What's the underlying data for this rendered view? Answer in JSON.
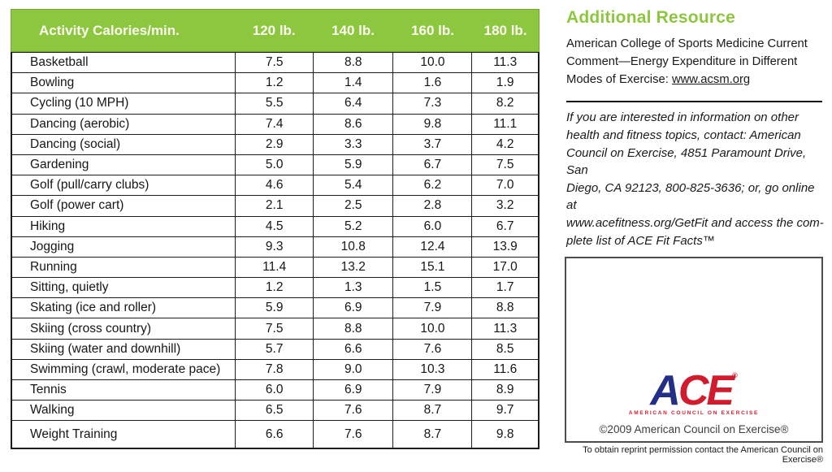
{
  "table": {
    "header": {
      "activity": "Activity Calories/min.",
      "weights": [
        "120 lb.",
        "140 lb.",
        "160 lb.",
        "180 lb."
      ]
    },
    "rows": [
      {
        "activity": "Basketball",
        "values": [
          "7.5",
          "8.8",
          "10.0",
          "11.3"
        ]
      },
      {
        "activity": "Bowling",
        "values": [
          "1.2",
          "1.4",
          "1.6",
          "1.9"
        ]
      },
      {
        "activity": "Cycling (10 MPH)",
        "values": [
          "5.5",
          "6.4",
          "7.3",
          "8.2"
        ]
      },
      {
        "activity": "Dancing (aerobic)",
        "values": [
          "7.4",
          "8.6",
          "9.8",
          "11.1"
        ]
      },
      {
        "activity": "Dancing (social)",
        "values": [
          "2.9",
          "3.3",
          "3.7",
          "4.2"
        ]
      },
      {
        "activity": "Gardening",
        "values": [
          "5.0",
          "5.9",
          "6.7",
          "7.5"
        ]
      },
      {
        "activity": "Golf (pull/carry clubs)",
        "values": [
          "4.6",
          "5.4",
          "6.2",
          "7.0"
        ]
      },
      {
        "activity": "Golf (power cart)",
        "values": [
          "2.1",
          "2.5",
          "2.8",
          "3.2"
        ]
      },
      {
        "activity": "Hiking",
        "values": [
          "4.5",
          "5.2",
          "6.0",
          "6.7"
        ]
      },
      {
        "activity": "Jogging",
        "values": [
          "9.3",
          "10.8",
          "12.4",
          "13.9"
        ]
      },
      {
        "activity": "Running",
        "values": [
          "11.4",
          "13.2",
          "15.1",
          "17.0"
        ]
      },
      {
        "activity": "Sitting, quietly",
        "values": [
          "1.2",
          "1.3",
          "1.5",
          "1.7"
        ]
      },
      {
        "activity": "Skating (ice and roller)",
        "values": [
          "5.9",
          "6.9",
          "7.9",
          "8.8"
        ]
      },
      {
        "activity": "Skiing (cross country)",
        "values": [
          "7.5",
          "8.8",
          "10.0",
          "11.3"
        ]
      },
      {
        "activity": "Skiing (water and downhill)",
        "values": [
          "5.7",
          "6.6",
          "7.6",
          "8.5"
        ]
      },
      {
        "activity": "Swimming (crawl, moderate pace)",
        "values": [
          "7.8",
          "9.0",
          "10.3",
          "11.6"
        ]
      },
      {
        "activity": "Tennis",
        "values": [
          "6.0",
          "6.9",
          "7.9",
          "8.9"
        ]
      },
      {
        "activity": "Walking",
        "values": [
          "6.5",
          "7.6",
          "8.7",
          "9.7"
        ]
      },
      {
        "activity": "Weight Training",
        "values": [
          "6.6",
          "7.6",
          "8.7",
          "9.8"
        ]
      }
    ]
  },
  "sidebar": {
    "heading": "Additional Resource",
    "resource": {
      "lines": [
        "American College of Sports Medicine Current",
        "Comment—Energy Expenditure in Different"
      ],
      "line3_prefix": "Modes of Exercise: ",
      "link": "www.acsm.org"
    },
    "note_lines": [
      "If you are interested in information on other",
      "health and fitness topics, contact: American",
      "Council on Exercise, 4851 Paramount Drive, San",
      "Diego, CA 92123, 800-825-3636; or, go online at",
      "www.acefitness.org/GetFit and access the com-",
      "plete list of ACE Fit Facts™"
    ],
    "logo": {
      "letters": [
        "A",
        "C",
        "E"
      ],
      "registered": "®",
      "subtext": "AMERICAN COUNCIL ON EXERCISE"
    },
    "copyright": "©2009 American Council on Exercise®",
    "reprint_note": "To obtain reprint permission contact the American Council on Exercise®"
  },
  "colors": {
    "header_green": "#8dc63f",
    "logo_blue": "#232e87",
    "logo_red": "#d11c2e",
    "table_border": "#1c1c1c"
  }
}
